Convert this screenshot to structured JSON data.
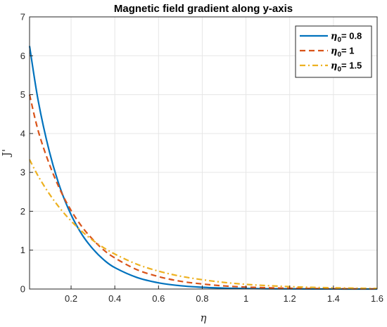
{
  "chart_data": {
    "type": "line",
    "title": "Magnetic field gradient along y-axis",
    "xlabel": "η",
    "ylabel": "J'",
    "xlim": [
      0.01,
      1.6
    ],
    "ylim": [
      0,
      7
    ],
    "xticks": [
      0.2,
      0.4,
      0.6,
      0.8,
      1,
      1.2,
      1.4,
      1.6
    ],
    "yticks": [
      0,
      1,
      2,
      3,
      4,
      5,
      6,
      7
    ],
    "grid": true,
    "legend_position": "top-right",
    "series": [
      {
        "name": "η0= 0.8",
        "legend_base": "η",
        "legend_sub": "0",
        "legend_rest": "= 0.8",
        "color": "#0072BD",
        "style": "solid",
        "x": [
          0.01,
          0.05,
          0.1,
          0.15,
          0.2,
          0.25,
          0.3,
          0.35,
          0.4,
          0.5,
          0.6,
          0.7,
          0.8,
          0.9,
          1.0,
          1.1,
          1.2,
          1.3,
          1.4,
          1.5,
          1.6
        ],
        "y": [
          6.25,
          4.83,
          3.55,
          2.6,
          1.91,
          1.4,
          1.03,
          0.75,
          0.55,
          0.3,
          0.16,
          0.085,
          0.045,
          0.024,
          0.013,
          0.007,
          0.004,
          0.002,
          0.001,
          0.0005,
          0.0003
        ]
      },
      {
        "name": "η0= 1",
        "legend_base": "η",
        "legend_sub": "0",
        "legend_rest": "= 1",
        "color": "#D95319",
        "style": "dashed",
        "x": [
          0.01,
          0.05,
          0.1,
          0.15,
          0.2,
          0.25,
          0.3,
          0.35,
          0.4,
          0.5,
          0.6,
          0.7,
          0.8,
          0.9,
          1.0,
          1.1,
          1.2,
          1.3,
          1.4,
          1.5,
          1.6
        ],
        "y": [
          5.0,
          4.06,
          3.22,
          2.55,
          2.02,
          1.6,
          1.27,
          1.0,
          0.8,
          0.5,
          0.32,
          0.2,
          0.13,
          0.08,
          0.05,
          0.032,
          0.02,
          0.013,
          0.008,
          0.005,
          0.003
        ]
      },
      {
        "name": "η0= 1.5",
        "legend_base": "η",
        "legend_sub": "0",
        "legend_rest": "= 1.5",
        "color": "#EDB120",
        "style": "dashdot",
        "x": [
          0.01,
          0.05,
          0.1,
          0.15,
          0.2,
          0.25,
          0.3,
          0.35,
          0.4,
          0.5,
          0.6,
          0.7,
          0.8,
          0.9,
          1.0,
          1.1,
          1.2,
          1.3,
          1.4,
          1.5,
          1.6
        ],
        "y": [
          3.33,
          2.9,
          2.45,
          2.07,
          1.75,
          1.48,
          1.25,
          1.06,
          0.9,
          0.64,
          0.46,
          0.33,
          0.24,
          0.17,
          0.12,
          0.087,
          0.062,
          0.044,
          0.032,
          0.022,
          0.015
        ]
      }
    ]
  }
}
